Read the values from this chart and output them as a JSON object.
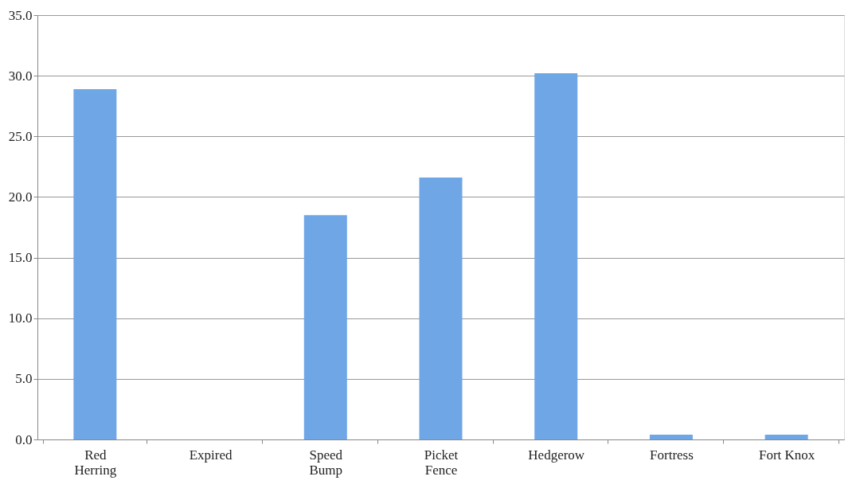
{
  "chart_data": {
    "type": "bar",
    "categories": [
      "Red Herring",
      "Expired",
      "Speed Bump",
      "Picket Fence",
      "Hedgerow",
      "Fortress",
      "Fort Knox"
    ],
    "values": [
      28.9,
      0,
      18.5,
      21.6,
      30.2,
      0.4,
      0.4
    ],
    "color": "#6fa6e6",
    "ylim": [
      0,
      35
    ],
    "yticks": [
      {
        "value": 0,
        "label": "0.0"
      },
      {
        "value": 5,
        "label": "5.0"
      },
      {
        "value": 10,
        "label": "10.0"
      },
      {
        "value": 15,
        "label": "15.0"
      },
      {
        "value": 20,
        "label": "20.0"
      },
      {
        "value": 25,
        "label": "25.0"
      },
      {
        "value": 30,
        "label": "30.0"
      },
      {
        "value": 35,
        "label": "35.0"
      }
    ],
    "grid": "y",
    "legend": false
  }
}
